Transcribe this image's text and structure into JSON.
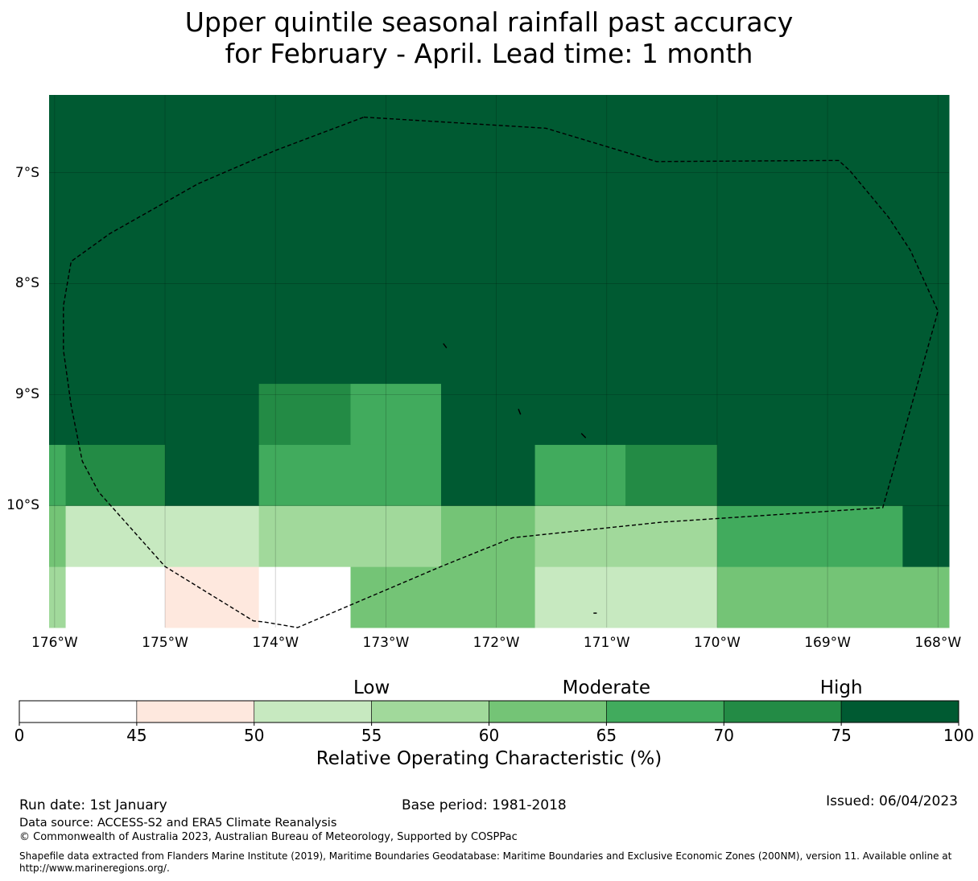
{
  "title": {
    "line1": "Upper quintile seasonal rainfall past accuracy",
    "line2": "for February - April. Lead time: 1 month"
  },
  "map": {
    "x_ticks": [
      "176°W",
      "175°W",
      "174°W",
      "173°W",
      "172°W",
      "171°W",
      "170°W",
      "169°W",
      "168°W"
    ],
    "y_ticks": [
      "7°S",
      "8°S",
      "9°S",
      "10°S"
    ],
    "extent_lon": [
      -176.05,
      -167.9
    ],
    "extent_lat": [
      -11.1,
      -6.3
    ],
    "roc_grid_rows": [
      {
        "lat_range": [
          -10.55,
          -11.1
        ],
        "cells": [
          [
            -176.05,
            -175.9,
            57
          ],
          [
            -175.9,
            -175.0,
            40
          ],
          [
            -175.0,
            -174.15,
            47
          ],
          [
            -174.15,
            -173.32,
            40
          ],
          [
            -173.32,
            -171.65,
            62
          ],
          [
            -171.65,
            -170.0,
            52
          ],
          [
            -170.0,
            -167.9,
            62
          ]
        ]
      },
      {
        "lat_range": [
          -10.0,
          -10.55
        ],
        "cells": [
          [
            -176.05,
            -175.9,
            62
          ],
          [
            -175.9,
            -174.15,
            52
          ],
          [
            -174.15,
            -172.5,
            57
          ],
          [
            -172.5,
            -171.65,
            62
          ],
          [
            -171.65,
            -170.0,
            57
          ],
          [
            -170.0,
            -168.32,
            67
          ],
          [
            -168.32,
            -167.9,
            77
          ]
        ]
      },
      {
        "lat_range": [
          -9.45,
          -10.0
        ],
        "cells": [
          [
            -176.05,
            -175.9,
            67
          ],
          [
            -175.9,
            -175.0,
            72
          ],
          [
            -175.0,
            -174.15,
            77
          ],
          [
            -174.15,
            -172.5,
            67
          ],
          [
            -172.5,
            -171.65,
            77
          ],
          [
            -171.65,
            -170.83,
            67
          ],
          [
            -170.83,
            -170.0,
            72
          ],
          [
            -170.0,
            -167.9,
            77
          ]
        ]
      },
      {
        "lat_range": [
          -8.9,
          -9.45
        ],
        "cells": [
          [
            -176.05,
            -174.15,
            77
          ],
          [
            -174.15,
            -173.32,
            72
          ],
          [
            -173.32,
            -172.5,
            67
          ],
          [
            -172.5,
            -167.9,
            77
          ]
        ]
      },
      {
        "lat_range": [
          -6.3,
          -8.9
        ],
        "cells": [
          [
            -176.05,
            -167.9,
            77
          ]
        ]
      }
    ],
    "eez_boundary": [
      [
        -173.2,
        -6.5
      ],
      [
        -171.55,
        -6.6
      ],
      [
        -170.55,
        -6.9
      ],
      [
        -168.9,
        -6.89
      ],
      [
        -168.8,
        -6.98
      ],
      [
        -168.45,
        -7.4
      ],
      [
        -168.25,
        -7.7
      ],
      [
        -168.0,
        -8.25
      ],
      [
        -168.5,
        -10.02
      ],
      [
        -170.5,
        -10.15
      ],
      [
        -171.85,
        -10.29
      ],
      [
        -172.5,
        -10.55
      ],
      [
        -173.8,
        -11.1
      ],
      [
        -174.1,
        -11.05
      ],
      [
        -174.2,
        -11.04
      ],
      [
        -175.0,
        -10.55
      ],
      [
        -175.6,
        -9.88
      ],
      [
        -175.75,
        -9.6
      ],
      [
        -175.85,
        -9.1
      ],
      [
        -175.92,
        -8.6
      ],
      [
        -175.92,
        -8.2
      ],
      [
        -175.85,
        -7.8
      ],
      [
        -175.5,
        -7.55
      ],
      [
        -174.7,
        -7.1
      ],
      [
        -174.0,
        -6.8
      ],
      [
        -173.2,
        -6.5
      ]
    ],
    "islands": [
      [
        [
          -172.48,
          -8.54
        ],
        [
          -172.45,
          -8.58
        ]
      ],
      [
        [
          -171.8,
          -9.13
        ],
        [
          -171.78,
          -9.18
        ]
      ],
      [
        [
          -171.23,
          -9.35
        ],
        [
          -171.19,
          -9.39
        ]
      ],
      [
        [
          -171.12,
          -10.97
        ],
        [
          -171.09,
          -10.97
        ]
      ]
    ]
  },
  "colorbar": {
    "bounds": [
      0,
      45,
      50,
      55,
      60,
      65,
      70,
      75,
      100
    ],
    "tick_labels": [
      "0",
      "45",
      "50",
      "55",
      "60",
      "65",
      "70",
      "75",
      "100"
    ],
    "colors": [
      "#ffffff",
      "#fee8de",
      "#c7e9c0",
      "#a1d99b",
      "#74c476",
      "#41ab5d",
      "#238b45",
      "#005a32"
    ],
    "categories": [
      {
        "label": "Low",
        "value": 55
      },
      {
        "label": "Moderate",
        "value": 65
      },
      {
        "label": "High",
        "value": 75
      }
    ],
    "label": "Relative Operating Characteristic (%)"
  },
  "footer": {
    "run_date": "Run date: 1st January",
    "base_period": "Base period: 1981-2018",
    "issued": "Issued: 06/04/2023",
    "data_source": "Data source: ACCESS-S2 and ERA5 Climate Reanalysis",
    "copyright": "© Commonwealth of Australia 2023, Australian Bureau of Meteorology, Supported by COSPPac",
    "shapefile_line1": "Shapefile data extracted from Flanders Marine Institute (2019), Maritime Boundaries Geodatabase: Maritime Boundaries and Exclusive Economic Zones (200NM), version 11. Available online at",
    "shapefile_line2": "http://www.marineregions.org/."
  }
}
